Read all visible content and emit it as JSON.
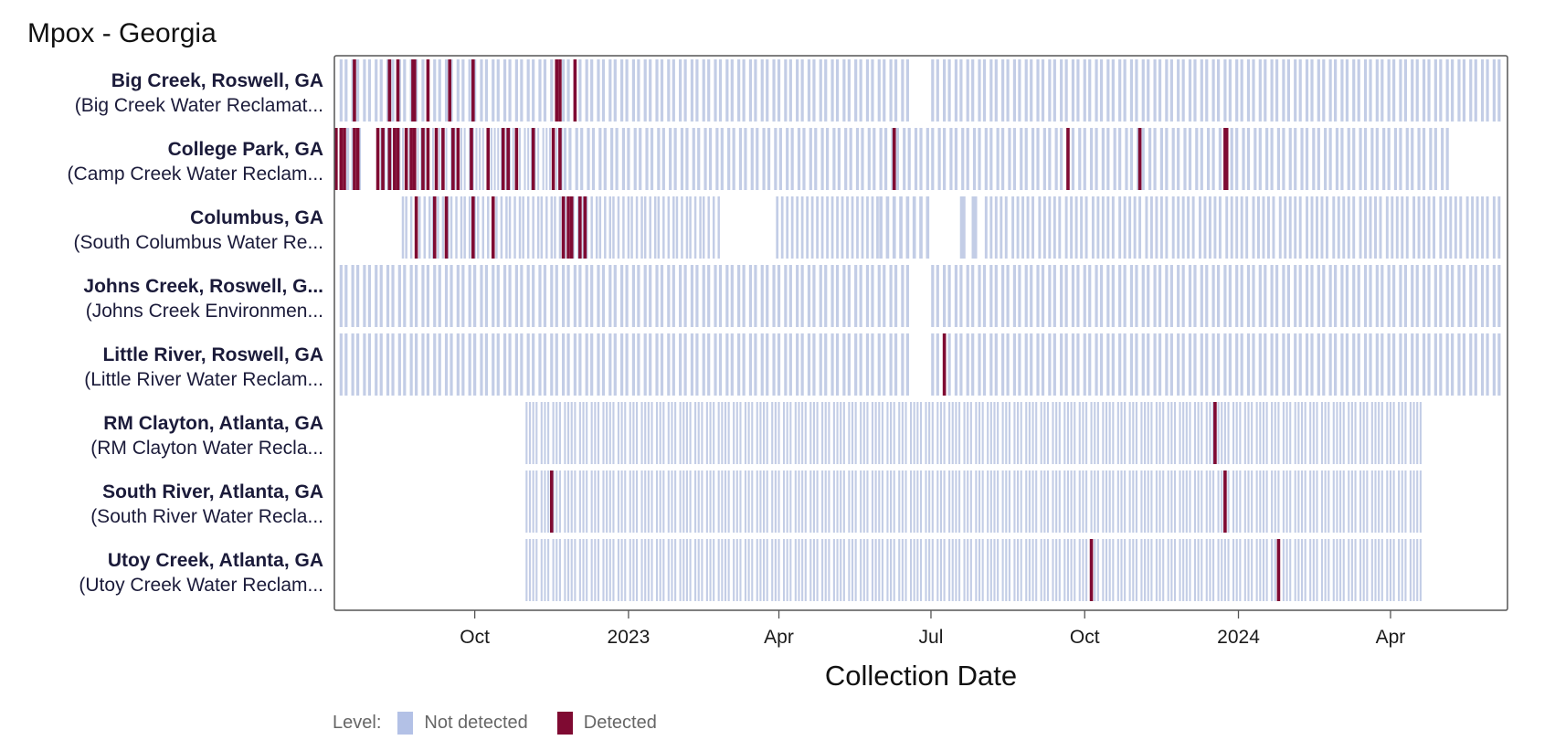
{
  "title": "Mpox - Georgia",
  "colors": {
    "not_detected": "#c3cde6",
    "detected": "#7f0a32",
    "legend_not_detected": "#b3c1e6",
    "frame": "#555555"
  },
  "legend": {
    "title": "Level:",
    "items": [
      "Not detected",
      "Detected"
    ]
  },
  "chart_data": {
    "type": "heatmap",
    "title": "Mpox - Georgia",
    "xlabel": "Collection Date",
    "ylabel": "",
    "x_range": [
      "2022-07-09",
      "2024-06-10"
    ],
    "x_ticks": [
      {
        "date": "2022-10-01",
        "label": "Oct"
      },
      {
        "date": "2023-01-01",
        "label": "2023"
      },
      {
        "date": "2023-04-01",
        "label": "Apr"
      },
      {
        "date": "2023-07-01",
        "label": "Jul"
      },
      {
        "date": "2023-10-01",
        "label": "Oct"
      },
      {
        "date": "2024-01-01",
        "label": "2024"
      },
      {
        "date": "2024-04-01",
        "label": "Apr"
      }
    ],
    "legend": {
      "title": "Level:",
      "entries": [
        "Not detected",
        "Detected"
      ],
      "placement": "bottom"
    },
    "sites": [
      {
        "name": "Big Creek, Roswell, GA",
        "facility": "(Big Creek Water Reclamat...",
        "sampling": [
          {
            "start": "2022-07-13",
            "end": "2023-06-18",
            "every_days": 3.5
          },
          {
            "start": "2023-07-02",
            "end": "2024-06-08",
            "every_days": 3.5
          }
        ],
        "detected": [
          "2022-07-21",
          "2022-08-11",
          "2022-08-16",
          "2022-08-25",
          "2022-08-26",
          "2022-09-03",
          "2022-09-16",
          "2022-09-30",
          "2022-11-19",
          "2022-11-21",
          "2022-11-30"
        ]
      },
      {
        "name": "College Park, GA",
        "facility": "(Camp Creek Water Reclam...",
        "sampling": [
          {
            "start": "2022-07-10",
            "end": "2022-07-26",
            "every_days": 3.5
          },
          {
            "start": "2022-08-04",
            "end": "2022-11-24",
            "every_days": 2.2
          },
          {
            "start": "2022-11-24",
            "end": "2024-05-08",
            "every_days": 3.5
          }
        ],
        "detected": [
          "2022-07-10",
          "2022-07-13",
          "2022-07-15",
          "2022-07-21",
          "2022-07-23",
          "2022-08-04",
          "2022-08-07",
          "2022-08-11",
          "2022-08-14",
          "2022-08-16",
          "2022-08-21",
          "2022-08-24",
          "2022-08-26",
          "2022-08-31",
          "2022-09-03",
          "2022-09-08",
          "2022-09-12",
          "2022-09-18",
          "2022-09-21",
          "2022-09-29",
          "2022-10-09",
          "2022-10-18",
          "2022-10-21",
          "2022-10-26",
          "2022-11-05",
          "2022-11-17",
          "2022-11-21",
          "2023-06-09",
          "2023-09-21",
          "2023-11-03",
          "2023-12-24",
          "2023-12-25"
        ]
      },
      {
        "name": "Columbus, GA",
        "facility": "(South Columbus Water Re...",
        "sampling": [
          {
            "start": "2022-08-19",
            "end": "2023-02-24",
            "every_days": 2.7
          },
          {
            "start": "2023-03-31",
            "end": "2023-05-30",
            "every_days": 3.0
          },
          {
            "start": "2023-06-01",
            "end": "2023-06-30",
            "every_days": 4.0
          },
          {
            "start": "2023-07-20",
            "end": "2023-07-27",
            "every_days": 7.0
          },
          {
            "start": "2023-08-03",
            "end": "2024-06-08",
            "every_days": 3.2
          }
        ],
        "detected": [
          "2022-08-27",
          "2022-09-07",
          "2022-09-14",
          "2022-09-30",
          "2022-10-12",
          "2022-11-23",
          "2022-11-26",
          "2022-11-28",
          "2022-12-03",
          "2022-12-06"
        ]
      },
      {
        "name": "Johns Creek, Roswell, G...",
        "facility": "(Johns Creek Environmen...",
        "sampling": [
          {
            "start": "2022-07-13",
            "end": "2023-06-18",
            "every_days": 3.5
          },
          {
            "start": "2023-07-02",
            "end": "2024-06-08",
            "every_days": 3.5
          }
        ],
        "detected": []
      },
      {
        "name": "Little River, Roswell, GA",
        "facility": "(Little River Water Reclam...",
        "sampling": [
          {
            "start": "2022-07-13",
            "end": "2023-06-18",
            "every_days": 3.5
          },
          {
            "start": "2023-07-02",
            "end": "2024-06-08",
            "every_days": 3.5
          }
        ],
        "detected": [
          "2023-07-09"
        ]
      },
      {
        "name": "RM Clayton, Atlanta, GA",
        "facility": "(RM Clayton Water Recla...",
        "sampling": [
          {
            "start": "2022-11-01",
            "end": "2024-04-22",
            "every_days": 2.3
          }
        ],
        "detected": [
          "2023-12-18"
        ]
      },
      {
        "name": "South River, Atlanta, GA",
        "facility": "(South River Water Recla...",
        "sampling": [
          {
            "start": "2022-11-01",
            "end": "2024-04-22",
            "every_days": 2.3
          }
        ],
        "detected": [
          "2022-11-16",
          "2023-12-24"
        ]
      },
      {
        "name": "Utoy Creek, Atlanta, GA",
        "facility": "(Utoy Creek Water Reclam...",
        "sampling": [
          {
            "start": "2022-11-01",
            "end": "2024-04-22",
            "every_days": 2.3
          }
        ],
        "detected": [
          "2023-10-05",
          "2024-01-25"
        ]
      }
    ]
  }
}
